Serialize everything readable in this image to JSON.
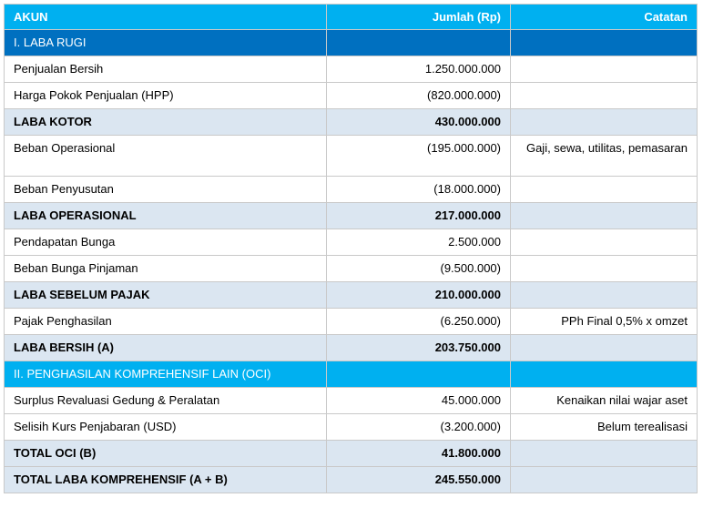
{
  "header": {
    "akun": "AKUN",
    "jumlah": "Jumlah (Rp)",
    "catatan": "Catatan"
  },
  "sections": [
    {
      "title": "I. LABA RUGI",
      "style": "dark"
    },
    {
      "title": "II. PENGHASILAN KOMPREHENSIF LAIN (OCI)",
      "style": "light"
    }
  ],
  "rows": [
    {
      "akun": "Penjualan Bersih",
      "jumlah": "1.250.000.000",
      "catatan": "",
      "total": false
    },
    {
      "akun": "Harga Pokok Penjualan (HPP)",
      "jumlah": "(820.000.000)",
      "catatan": "",
      "total": false
    },
    {
      "akun": "LABA KOTOR",
      "jumlah": "430.000.000",
      "catatan": "",
      "total": true
    },
    {
      "akun": "Beban Operasional",
      "jumlah": "(195.000.000)",
      "catatan": "Gaji, sewa, utilitas, pemasaran",
      "total": false
    },
    {
      "akun": "Beban Penyusutan",
      "jumlah": "(18.000.000)",
      "catatan": "",
      "total": false
    },
    {
      "akun": "LABA OPERASIONAL",
      "jumlah": "217.000.000",
      "catatan": "",
      "total": true
    },
    {
      "akun": "Pendapatan Bunga",
      "jumlah": "2.500.000",
      "catatan": "",
      "total": false
    },
    {
      "akun": "Beban Bunga Pinjaman",
      "jumlah": "(9.500.000)",
      "catatan": "",
      "total": false
    },
    {
      "akun": "LABA SEBELUM PAJAK",
      "jumlah": "210.000.000",
      "catatan": "",
      "total": true
    },
    {
      "akun": "Pajak Penghasilan",
      "jumlah": "(6.250.000)",
      "catatan": "PPh Final 0,5% x omzet",
      "total": false
    },
    {
      "akun": "LABA BERSIH (A)",
      "jumlah": "203.750.000",
      "catatan": "",
      "total": true
    },
    {
      "akun": "Surplus Revaluasi Gedung & Peralatan",
      "jumlah": "45.000.000",
      "catatan": "Kenaikan nilai wajar aset",
      "total": false
    },
    {
      "akun": "Selisih Kurs Penjabaran (USD)",
      "jumlah": "(3.200.000)",
      "catatan": "Belum terealisasi",
      "total": false
    },
    {
      "akun": "TOTAL OCI (B)",
      "jumlah": "41.800.000",
      "catatan": "",
      "total": true
    },
    {
      "akun": "TOTAL LABA KOMPREHENSIF (A + B)",
      "jumlah": "245.550.000",
      "catatan": "",
      "total": true
    }
  ]
}
